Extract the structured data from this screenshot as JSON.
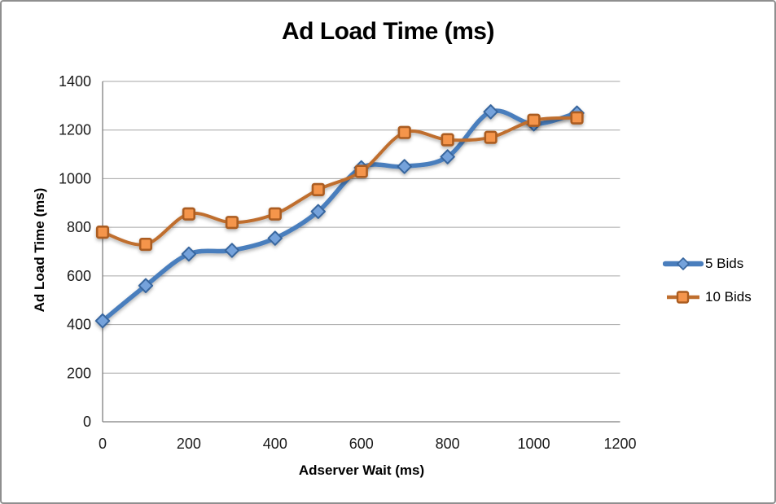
{
  "chart_data": {
    "type": "line",
    "title": "Ad Load Time (ms)",
    "xlabel": "Adserver Wait (ms)",
    "ylabel": "Ad Load Time (ms)",
    "x": [
      0,
      100,
      200,
      300,
      400,
      500,
      600,
      700,
      800,
      900,
      1000,
      1100
    ],
    "series": [
      {
        "name": "5 Bids",
        "marker": "diamond",
        "line_color": "#4a7ebd",
        "marker_fill": "#74a2db",
        "marker_border": "#38669e",
        "line_width": 5.5,
        "values": [
          415,
          560,
          690,
          705,
          755,
          865,
          1045,
          1050,
          1090,
          1275,
          1225,
          1270
        ]
      },
      {
        "name": "10 Bids",
        "marker": "square",
        "line_color": "#bf6e2e",
        "marker_fill": "#f5954c",
        "marker_border": "#ab5d20",
        "line_width": 4,
        "values": [
          780,
          730,
          855,
          820,
          855,
          955,
          1030,
          1190,
          1160,
          1170,
          1240,
          1250
        ]
      }
    ],
    "xlim": [
      0,
      1200
    ],
    "ylim": [
      0,
      1400
    ],
    "x_ticks": [
      0,
      200,
      400,
      600,
      800,
      1000,
      1200
    ],
    "y_ticks": [
      0,
      200,
      400,
      600,
      800,
      1000,
      1200,
      1400
    ],
    "grid": true,
    "smooth_lines": true,
    "legend_position": "right",
    "gridline_color": "#a6a6a6",
    "axis_line_color": "#7f7f7f",
    "tick_label_color": "#1a1a1a"
  }
}
